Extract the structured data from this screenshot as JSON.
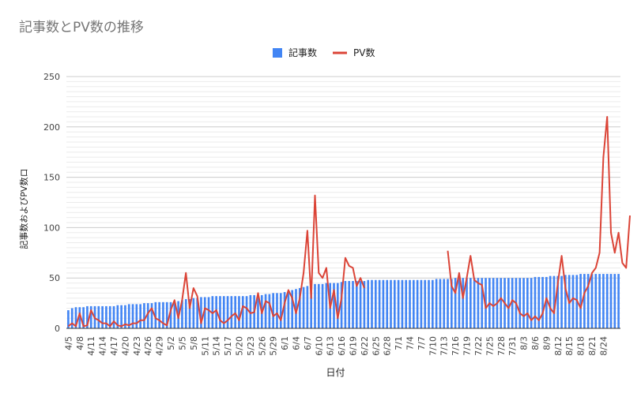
{
  "chart_data": {
    "type": "bar",
    "title": "記事数とPV数の推移",
    "xlabel": "日付",
    "ylabel": "記事数およびPV数ロ",
    "ylim": [
      0,
      250
    ],
    "yticks": [
      0,
      50,
      100,
      150,
      200,
      250
    ],
    "grid": true,
    "legend_position": "top-center",
    "x_tick_labels": [
      "4/5",
      "4/8",
      "4/11",
      "4/14",
      "4/17",
      "4/20",
      "4/23",
      "4/26",
      "4/29",
      "5/2",
      "5/5",
      "5/8",
      "5/11",
      "5/14",
      "5/17",
      "5/20",
      "5/23",
      "5/26",
      "5/29",
      "6/1",
      "6/4",
      "6/7",
      "6/10",
      "6/13",
      "6/16",
      "6/19",
      "6/22",
      "6/25",
      "6/28",
      "7/1",
      "7/4",
      "7/7",
      "7/10",
      "7/13",
      "7/16",
      "7/19",
      "7/22",
      "7/25",
      "7/28",
      "7/31",
      "8/3",
      "8/6",
      "8/9",
      "8/12",
      "8/15",
      "8/18",
      "8/21",
      "8/24"
    ],
    "series": [
      {
        "name": "記事数",
        "kind": "bar",
        "color": "#4285f4",
        "values": [
          18,
          20,
          21,
          21,
          21,
          22,
          22,
          22,
          22,
          22,
          22,
          22,
          22,
          23,
          23,
          23,
          24,
          24,
          24,
          24,
          25,
          25,
          25,
          26,
          26,
          26,
          26,
          26,
          26,
          27,
          28,
          29,
          29,
          30,
          30,
          31,
          31,
          31,
          32,
          32,
          32,
          32,
          32,
          32,
          32,
          32,
          32,
          32,
          33,
          33,
          33,
          33,
          34,
          34,
          35,
          35,
          35,
          36,
          37,
          38,
          39,
          40,
          41,
          42,
          43,
          44,
          44,
          44,
          45,
          45,
          45,
          45,
          46,
          47,
          47,
          47,
          47,
          47,
          47,
          48,
          48,
          48,
          48,
          48,
          48,
          48,
          48,
          48,
          48,
          48,
          48,
          48,
          48,
          48,
          48,
          48,
          48,
          49,
          49,
          49,
          49,
          49,
          50,
          50,
          50,
          50,
          50,
          50,
          50,
          50,
          50,
          50,
          50,
          50,
          50,
          50,
          50,
          50,
          50,
          50,
          50,
          50,
          50,
          51,
          51,
          51,
          51,
          52,
          52,
          52,
          52,
          53,
          53,
          53,
          53,
          54,
          54,
          54,
          54,
          54,
          54,
          54,
          54,
          54,
          54,
          54
        ]
      },
      {
        "name": "PV数",
        "kind": "line",
        "color": "#db4437",
        "values": [
          2,
          5,
          2,
          15,
          2,
          3,
          18,
          10,
          8,
          5,
          5,
          2,
          7,
          3,
          2,
          4,
          3,
          5,
          5,
          8,
          8,
          15,
          20,
          10,
          8,
          5,
          3,
          18,
          28,
          10,
          28,
          55,
          20,
          40,
          32,
          5,
          20,
          18,
          15,
          18,
          8,
          5,
          8,
          12,
          15,
          8,
          22,
          20,
          15,
          16,
          35,
          15,
          27,
          25,
          12,
          15,
          8,
          25,
          38,
          30,
          15,
          30,
          55,
          97,
          30,
          132,
          55,
          50,
          60,
          20,
          38,
          10,
          30,
          70,
          62,
          60,
          42,
          50,
          40,
          null,
          null,
          null,
          null,
          null,
          null,
          null,
          null,
          null,
          null,
          null,
          null,
          null,
          null,
          null,
          null,
          null,
          null,
          null,
          null,
          null,
          77,
          42,
          35,
          55,
          30,
          50,
          72,
          48,
          45,
          43,
          20,
          25,
          22,
          25,
          30,
          25,
          20,
          28,
          25,
          15,
          12,
          15,
          8,
          12,
          8,
          15,
          30,
          20,
          15,
          45,
          72,
          40,
          25,
          30,
          28,
          20,
          35,
          42,
          55,
          60,
          75,
          170,
          210,
          95,
          75,
          95,
          65,
          60,
          112
        ]
      }
    ]
  }
}
